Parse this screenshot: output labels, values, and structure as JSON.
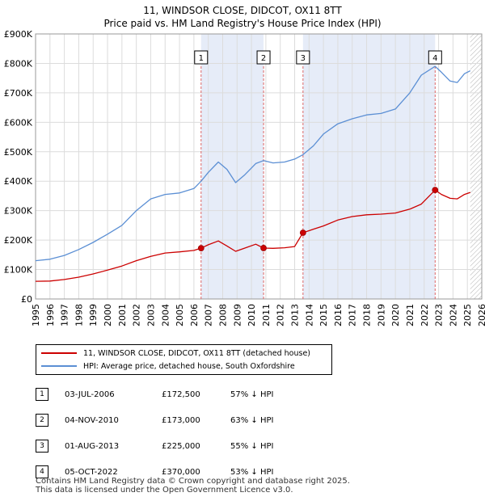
{
  "title_line1": "11, WINDSOR CLOSE, DIDCOT, OX11 8TT",
  "title_line2": "Price paid vs. HM Land Registry's House Price Index (HPI)",
  "colors": {
    "property": "#cc0000",
    "hpi": "#5b8fd4",
    "shade": "#e6ecf8",
    "marker_line": "#dd6666"
  },
  "chart_data": {
    "type": "line",
    "title": "Price paid vs. HM Land Registry's House Price Index (HPI)",
    "xlim": [
      1995,
      2026
    ],
    "ylim": [
      0,
      900000
    ],
    "x_ticks": [
      "1995",
      "1996",
      "1997",
      "1998",
      "1999",
      "2000",
      "2001",
      "2002",
      "2003",
      "2004",
      "2005",
      "2006",
      "2007",
      "2008",
      "2009",
      "2010",
      "2011",
      "2012",
      "2013",
      "2014",
      "2015",
      "2016",
      "2017",
      "2018",
      "2019",
      "2020",
      "2021",
      "2022",
      "2023",
      "2024",
      "2025",
      "2026"
    ],
    "y_ticks": [
      {
        "value": 0,
        "label": "£0"
      },
      {
        "value": 100000,
        "label": "£100K"
      },
      {
        "value": 200000,
        "label": "£200K"
      },
      {
        "value": 300000,
        "label": "£300K"
      },
      {
        "value": 400000,
        "label": "£400K"
      },
      {
        "value": 500000,
        "label": "£500K"
      },
      {
        "value": 600000,
        "label": "£600K"
      },
      {
        "value": 700000,
        "label": "£700K"
      },
      {
        "value": 800000,
        "label": "£800K"
      },
      {
        "value": 900000,
        "label": "£900K"
      }
    ],
    "shaded_ranges": [
      [
        2006.5,
        2010.84
      ],
      [
        2013.58,
        2022.76
      ]
    ],
    "future_hatch_from": 2025.2,
    "series": [
      {
        "name": "11, WINDSOR CLOSE, DIDCOT, OX11 8TT (detached house)",
        "color": "#cc0000",
        "points": [
          [
            1995,
            60000
          ],
          [
            1996,
            61000
          ],
          [
            1997,
            66000
          ],
          [
            1998,
            74000
          ],
          [
            1999,
            85000
          ],
          [
            2000,
            98000
          ],
          [
            2001,
            112000
          ],
          [
            2002,
            130000
          ],
          [
            2003,
            145000
          ],
          [
            2004,
            156000
          ],
          [
            2005,
            160000
          ],
          [
            2006,
            165000
          ],
          [
            2006.5,
            172500
          ],
          [
            2007,
            184000
          ],
          [
            2007.7,
            197000
          ],
          [
            2008.3,
            180000
          ],
          [
            2008.9,
            162000
          ],
          [
            2009.5,
            172000
          ],
          [
            2010.3,
            186000
          ],
          [
            2010.84,
            173000
          ],
          [
            2011.5,
            172000
          ],
          [
            2012.3,
            174000
          ],
          [
            2013,
            178000
          ],
          [
            2013.58,
            225000
          ],
          [
            2014.3,
            237000
          ],
          [
            2015,
            248000
          ],
          [
            2016,
            268000
          ],
          [
            2017,
            280000
          ],
          [
            2018,
            286000
          ],
          [
            2019,
            288000
          ],
          [
            2020,
            292000
          ],
          [
            2021,
            305000
          ],
          [
            2021.8,
            322000
          ],
          [
            2022.76,
            370000
          ],
          [
            2023.2,
            355000
          ],
          [
            2023.8,
            342000
          ],
          [
            2024.3,
            340000
          ],
          [
            2024.8,
            355000
          ],
          [
            2025.2,
            362000
          ]
        ]
      },
      {
        "name": "HPI: Average price, detached house, South Oxfordshire",
        "color": "#5b8fd4",
        "points": [
          [
            1995,
            130000
          ],
          [
            1996,
            135000
          ],
          [
            1997,
            148000
          ],
          [
            1998,
            168000
          ],
          [
            1999,
            192000
          ],
          [
            2000,
            220000
          ],
          [
            2001,
            250000
          ],
          [
            2002,
            300000
          ],
          [
            2003,
            340000
          ],
          [
            2004,
            355000
          ],
          [
            2005,
            360000
          ],
          [
            2006,
            375000
          ],
          [
            2006.5,
            400000
          ],
          [
            2007,
            430000
          ],
          [
            2007.7,
            465000
          ],
          [
            2008.3,
            440000
          ],
          [
            2008.9,
            395000
          ],
          [
            2009.5,
            420000
          ],
          [
            2010.3,
            460000
          ],
          [
            2010.84,
            470000
          ],
          [
            2011.5,
            462000
          ],
          [
            2012.3,
            465000
          ],
          [
            2013,
            475000
          ],
          [
            2013.58,
            490000
          ],
          [
            2014.3,
            520000
          ],
          [
            2015,
            560000
          ],
          [
            2016,
            595000
          ],
          [
            2017,
            612000
          ],
          [
            2018,
            625000
          ],
          [
            2019,
            630000
          ],
          [
            2020,
            645000
          ],
          [
            2021,
            700000
          ],
          [
            2021.8,
            760000
          ],
          [
            2022.76,
            790000
          ],
          [
            2023.2,
            770000
          ],
          [
            2023.8,
            740000
          ],
          [
            2024.3,
            735000
          ],
          [
            2024.8,
            765000
          ],
          [
            2025.2,
            775000
          ]
        ]
      }
    ],
    "sales": [
      {
        "n": "1",
        "x": 2006.5,
        "price": 172500
      },
      {
        "n": "2",
        "x": 2010.84,
        "price": 173000
      },
      {
        "n": "3",
        "x": 2013.58,
        "price": 225000
      },
      {
        "n": "4",
        "x": 2022.76,
        "price": 370000
      }
    ]
  },
  "legend": {
    "property_label": "11, WINDSOR CLOSE, DIDCOT, OX11 8TT (detached house)",
    "hpi_label": "HPI: Average price, detached house, South Oxfordshire"
  },
  "sales_table": [
    {
      "n": "1",
      "date": "03-JUL-2006",
      "price": "£172,500",
      "hpi": "57% ↓ HPI"
    },
    {
      "n": "2",
      "date": "04-NOV-2010",
      "price": "£173,000",
      "hpi": "63% ↓ HPI"
    },
    {
      "n": "3",
      "date": "01-AUG-2013",
      "price": "£225,000",
      "hpi": "55% ↓ HPI"
    },
    {
      "n": "4",
      "date": "05-OCT-2022",
      "price": "£370,000",
      "hpi": "53% ↓ HPI"
    }
  ],
  "footer_line1": "Contains HM Land Registry data © Crown copyright and database right 2025.",
  "footer_line2": "This data is licensed under the Open Government Licence v3.0."
}
